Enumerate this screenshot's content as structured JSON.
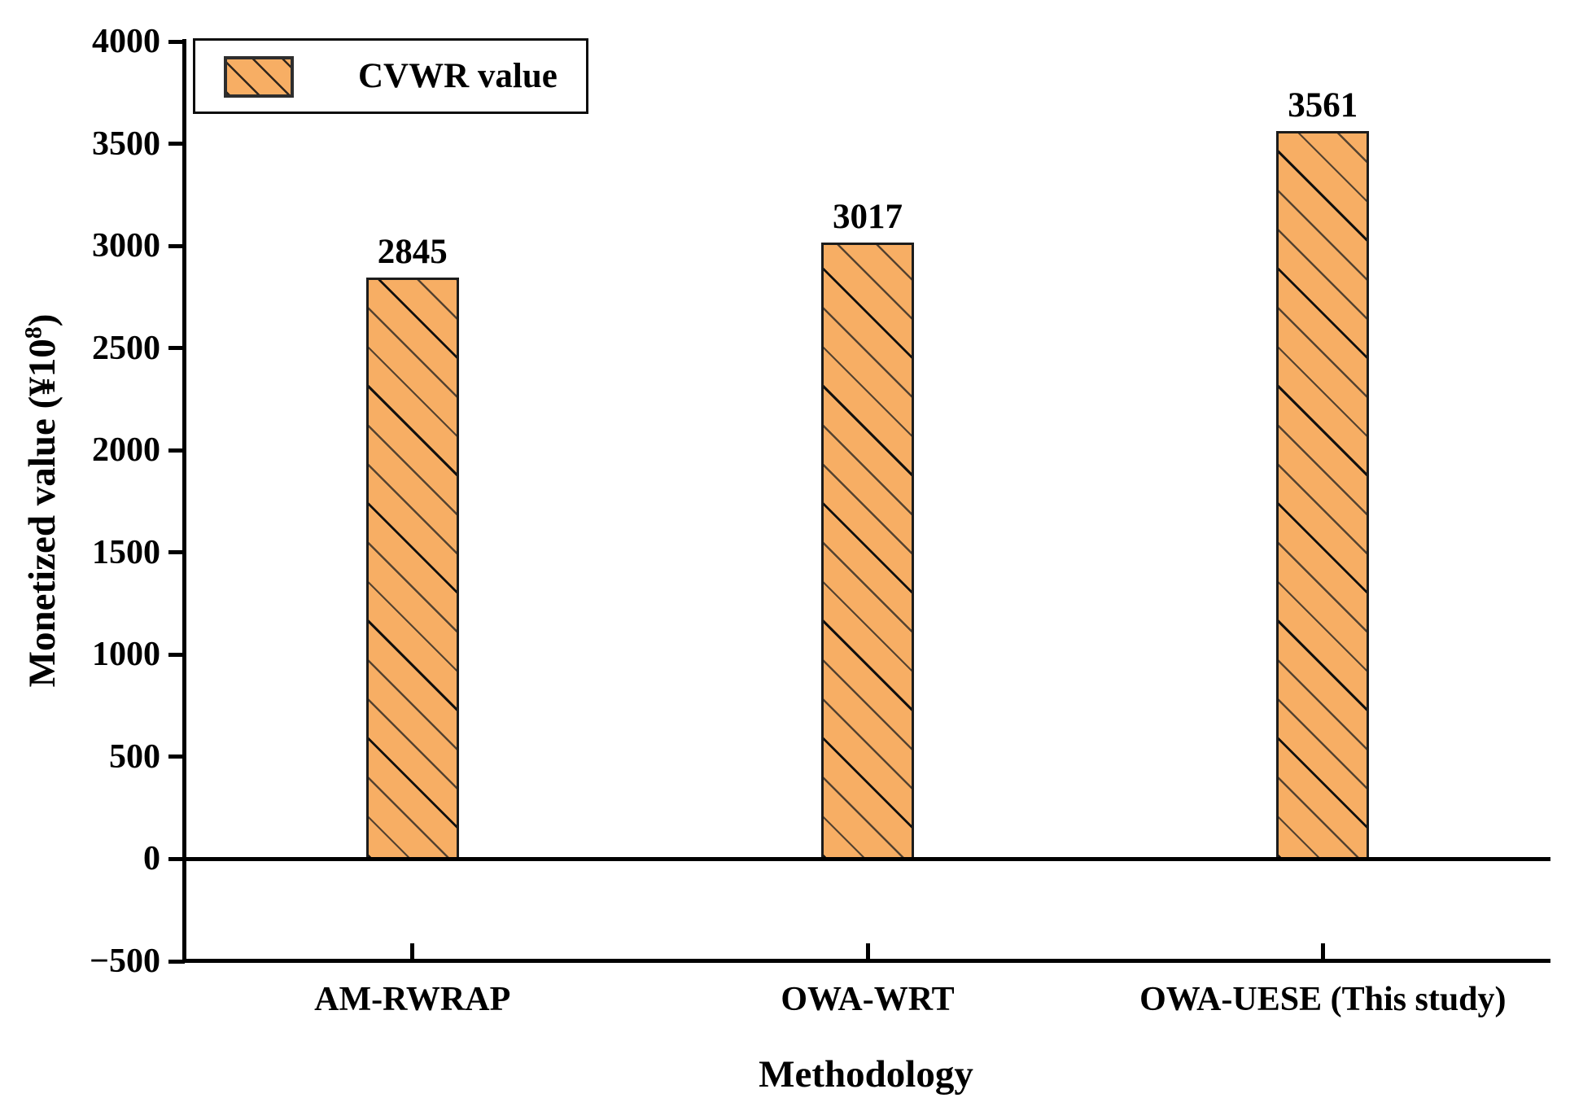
{
  "chart_data": {
    "type": "bar",
    "categories": [
      "AM-RWRAP",
      "OWA-WRT",
      "OWA-UESE (This study)"
    ],
    "series": [
      {
        "name": "CVWR value",
        "values": [
          2845,
          3017,
          3561
        ]
      }
    ],
    "bar_value_labels": [
      "2845",
      "3017",
      "3561"
    ],
    "xlabel": "Methodology",
    "ylabel": "Monetized value (¥10⁸)",
    "ylabel_parts": {
      "main": "Monetized value (¥10",
      "sup": "8",
      "end": ")"
    },
    "ylim": [
      -500,
      4000
    ],
    "yticks": [
      4000,
      3500,
      3000,
      2500,
      2000,
      1500,
      1000,
      500,
      0,
      -500
    ],
    "grid": false,
    "legend": {
      "label": "CVWR value",
      "position": "upper-left-inside"
    },
    "bar_fill_color": "#F7AE64",
    "bar_edge_color": "#1c1c1c",
    "hatch": "\\",
    "axis_color": "#000000"
  }
}
